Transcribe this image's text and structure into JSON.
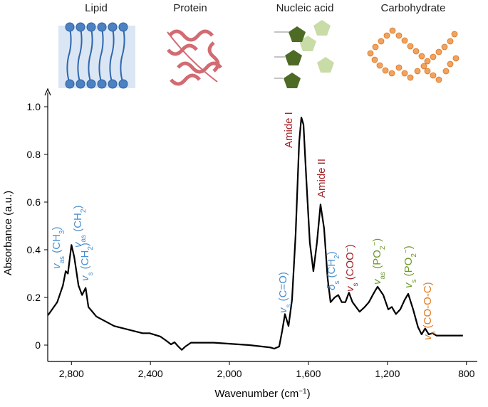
{
  "header": {
    "labels": [
      "Lipid",
      "Protein",
      "Nucleic acid",
      "Carbohydrate"
    ]
  },
  "chart_data": {
    "type": "line",
    "y_label": "Absorbance (a.u.)",
    "x_label": [
      {
        "text": "Wavenumber (cm"
      },
      {
        "text": "−1",
        "sup": true
      },
      {
        "text": ")"
      }
    ],
    "xlim": [
      2920,
      745
    ],
    "ylim": [
      -0.06,
      1.05
    ],
    "xticks": [
      {
        "value": 2800,
        "label": "2,800"
      },
      {
        "value": 2400,
        "label": "2,400"
      },
      {
        "value": 2000,
        "label": "2,000"
      },
      {
        "value": 1600,
        "label": "1,600"
      },
      {
        "value": 1200,
        "label": "1,200"
      },
      800
    ],
    "yticks": [
      0,
      0.2,
      0.4,
      0.6,
      0.8,
      {
        "value": 1,
        "label": "1.0"
      }
    ],
    "series": [
      {
        "color": "#000000",
        "x": [
          2919,
          2872,
          2843,
          2829,
          2818,
          2800,
          2786,
          2764,
          2746,
          2728,
          2714,
          2674,
          2584,
          2440,
          2404,
          2350,
          2314,
          2296,
          2278,
          2259,
          2241,
          2223,
          2195,
          2079,
          1899,
          1791,
          1773,
          1748,
          1733,
          1719,
          1701,
          1683,
          1665,
          1647,
          1636,
          1625,
          1611,
          1593,
          1575,
          1557,
          1539,
          1521,
          1503,
          1488,
          1467,
          1449,
          1431,
          1413,
          1395,
          1377,
          1341,
          1315,
          1294,
          1268,
          1250,
          1221,
          1196,
          1178,
          1157,
          1135,
          1113,
          1095,
          1070,
          1045,
          1027,
          1009,
          991,
          973,
          952,
          926,
          818
        ],
        "values": [
          0.125,
          0.18,
          0.25,
          0.31,
          0.3,
          0.42,
          0.37,
          0.25,
          0.21,
          0.24,
          0.16,
          0.12,
          0.08,
          0.05,
          0.05,
          0.036,
          0.015,
          0.003,
          0.012,
          -0.006,
          -0.02,
          -0.006,
          0.01,
          0.01,
          0,
          -0.01,
          -0.015,
          -0.006,
          0.06,
          0.13,
          0.08,
          0.19,
          0.46,
          0.85,
          0.955,
          0.925,
          0.7,
          0.43,
          0.31,
          0.43,
          0.59,
          0.49,
          0.28,
          0.18,
          0.2,
          0.21,
          0.18,
          0.18,
          0.22,
          0.18,
          0.14,
          0.16,
          0.18,
          0.22,
          0.245,
          0.21,
          0.15,
          0.16,
          0.13,
          0.15,
          0.19,
          0.215,
          0.15,
          0.075,
          0.045,
          0.07,
          0.045,
          0.05,
          0.04,
          0.04,
          0.04
        ]
      }
    ],
    "annotations": [
      {
        "color": "#4a8fd0",
        "parts": [
          {
            "text": "v",
            "italic": true
          },
          {
            "text": "as",
            "sub": true
          },
          {
            "text": " (CH"
          },
          {
            "text": "3",
            "sub": true
          },
          {
            "text": ")"
          }
        ]
      },
      {
        "color": "#4a8fd0",
        "parts": [
          {
            "text": "v",
            "italic": true
          },
          {
            "text": "as",
            "sub": true
          },
          {
            "text": " (CH"
          },
          {
            "text": "2",
            "sub": true
          },
          {
            "text": ")"
          }
        ]
      },
      {
        "color": "#4a8fd0",
        "parts": [
          {
            "text": "v",
            "italic": true
          },
          {
            "text": "s",
            "sub": true
          },
          {
            "text": " (CH"
          },
          {
            "text": "2",
            "sub": true
          },
          {
            "text": ")"
          }
        ]
      },
      {
        "color": "#4a8fd0",
        "parts": [
          {
            "text": "v",
            "italic": true
          },
          {
            "text": "s",
            "sub": true
          },
          {
            "text": " (C=O)"
          }
        ]
      },
      {
        "color": "#a3262b",
        "parts": [
          {
            "text": "Amide I"
          }
        ]
      },
      {
        "color": "#a3262b",
        "parts": [
          {
            "text": "Amide II"
          }
        ]
      },
      {
        "color": "#4a8fd0",
        "parts": [
          {
            "text": "δ",
            "italic": true
          },
          {
            "text": "s",
            "sub": true
          },
          {
            "text": " (CH"
          },
          {
            "text": "2",
            "sub": true
          },
          {
            "text": ")"
          }
        ]
      },
      {
        "color": "#a3262b",
        "parts": [
          {
            "text": "v",
            "italic": true
          },
          {
            "text": "s",
            "sub": true
          },
          {
            "text": " (COO"
          },
          {
            "text": "−",
            "sup": true
          },
          {
            "text": ")"
          }
        ]
      },
      {
        "color": "#6f9a2a",
        "parts": [
          {
            "text": "v",
            "italic": true
          },
          {
            "text": "as",
            "sub": true
          },
          {
            "text": " (PO"
          },
          {
            "text": "2",
            "sub": true
          },
          {
            "text": "−",
            "sup": true
          },
          {
            "text": ")"
          }
        ]
      },
      {
        "color": "#6f9a2a",
        "parts": [
          {
            "text": "v",
            "italic": true
          },
          {
            "text": "s",
            "sub": true
          },
          {
            "text": " (PO"
          },
          {
            "text": "2",
            "sub": true
          },
          {
            "text": "−",
            "sup": true
          },
          {
            "text": ")"
          }
        ]
      },
      {
        "color": "#e07b1f",
        "parts": [
          {
            "text": "v",
            "italic": true
          },
          {
            "text": "s",
            "sub": true
          },
          {
            "text": " (CO-O-C)"
          }
        ]
      }
    ]
  }
}
